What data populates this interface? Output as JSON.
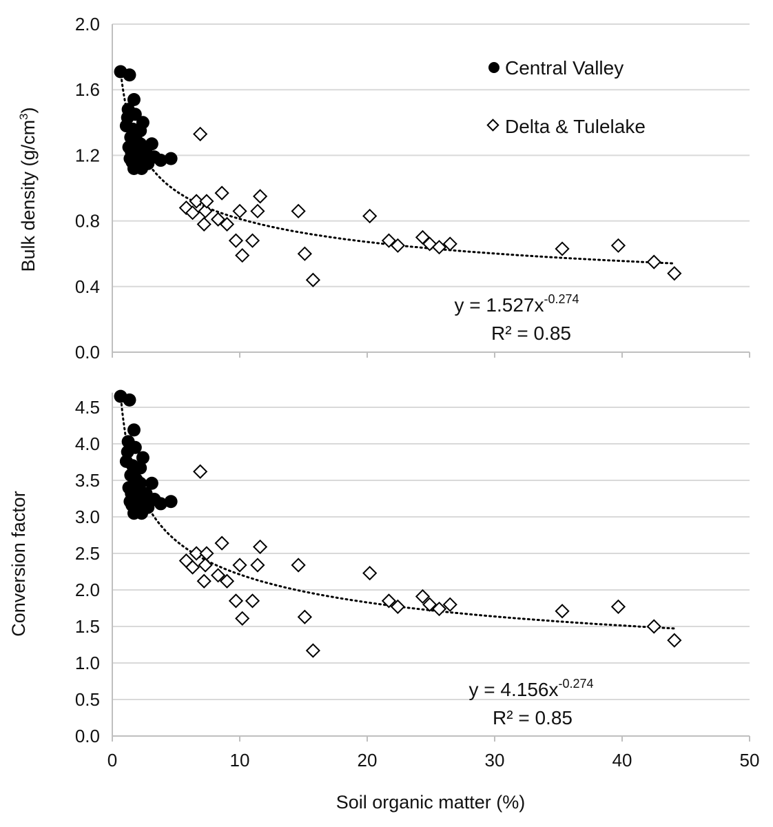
{
  "chart_data": [
    {
      "type": "scatter",
      "ylabel": "Bulk density (g/cm3)",
      "ylabel_main": "Bulk density (g/cm",
      "ylabel_sup": "3",
      "ylabel_end": ")",
      "xlim": [
        0,
        50
      ],
      "ylim": [
        0,
        2.0
      ],
      "yticks": [
        "0.0",
        "0.4",
        "0.8",
        "1.2",
        "1.6",
        "2.0"
      ],
      "ytick_values": [
        0,
        0.4,
        0.8,
        1.2,
        1.6,
        2.0
      ],
      "xticks_values": [
        0,
        10,
        20,
        30,
        40,
        50
      ],
      "grid": true,
      "legend": {
        "placement": "top-right",
        "entries": [
          "Central Valley",
          "Delta & Tulelake"
        ]
      },
      "trendline": {
        "type": "power",
        "a": 1.527,
        "b": -0.274,
        "style": "dotted",
        "x_range": [
          0.65,
          44.1
        ]
      },
      "equation": {
        "main": "y = 1.527x",
        "exponent": "-0.274",
        "r2": "R² = 0.85"
      },
      "series": [
        {
          "name": "Central Valley",
          "marker": "filled-circle",
          "color": "#000000",
          "x": [
            0.65,
            1.35,
            1.7,
            1.25,
            1.2,
            1.1,
            2.4,
            2.2,
            2.0,
            3.1,
            1.4,
            2.0,
            2.3,
            4.6,
            3.8,
            1.7,
            1.45,
            1.75,
            2.65,
            1.6,
            1.9,
            2.1,
            2.5,
            1.3,
            1.5,
            2.8,
            3.3,
            1.8,
            2.2,
            1.55
          ],
          "y": [
            1.71,
            1.69,
            1.54,
            1.48,
            1.43,
            1.38,
            1.4,
            1.35,
            1.26,
            1.27,
            1.18,
            1.14,
            1.12,
            1.18,
            1.17,
            1.12,
            1.31,
            1.24,
            1.22,
            1.36,
            1.29,
            1.2,
            1.18,
            1.25,
            1.22,
            1.15,
            1.19,
            1.45,
            1.27,
            1.16
          ]
        },
        {
          "name": "Delta & Tulelake",
          "marker": "open-diamond",
          "color": "#000000",
          "x": [
            6.9,
            5.8,
            6.3,
            6.6,
            7.3,
            7.2,
            7.4,
            8.3,
            8.6,
            9.0,
            9.7,
            10.0,
            10.2,
            11.0,
            11.4,
            11.6,
            14.6,
            15.1,
            15.75,
            20.2,
            21.7,
            22.4,
            24.35,
            24.9,
            25.65,
            26.5,
            35.3,
            39.7,
            42.5,
            44.1
          ],
          "y": [
            1.33,
            0.88,
            0.85,
            0.92,
            0.86,
            0.78,
            0.92,
            0.81,
            0.97,
            0.78,
            0.68,
            0.86,
            0.59,
            0.68,
            0.86,
            0.95,
            0.86,
            0.6,
            0.44,
            0.83,
            0.68,
            0.65,
            0.7,
            0.66,
            0.64,
            0.66,
            0.63,
            0.65,
            0.55,
            0.48
          ]
        }
      ]
    },
    {
      "type": "scatter",
      "xlabel": "Soil organic matter (%)",
      "ylabel": "Conversion factor",
      "xlim": [
        0,
        50
      ],
      "ylim": [
        0,
        4.7
      ],
      "xticks": [
        "0",
        "10",
        "20",
        "30",
        "40",
        "50"
      ],
      "xtick_values": [
        0,
        10,
        20,
        30,
        40,
        50
      ],
      "yticks": [
        "0.0",
        "0.5",
        "1.0",
        "1.5",
        "2.0",
        "2.5",
        "3.0",
        "3.5",
        "4.0",
        "4.5"
      ],
      "ytick_values": [
        0,
        0.5,
        1.0,
        1.5,
        2.0,
        2.5,
        3.0,
        3.5,
        4.0,
        4.5
      ],
      "grid": true,
      "trendline": {
        "type": "power",
        "a": 4.156,
        "b": -0.274,
        "style": "dotted",
        "x_range": [
          0.65,
          44.1
        ]
      },
      "equation": {
        "main": "y = 4.156x",
        "exponent": "-0.274",
        "r2": "R² = 0.85"
      },
      "series": [
        {
          "name": "Central Valley",
          "marker": "filled-circle",
          "color": "#000000",
          "x": [
            0.65,
            1.35,
            1.7,
            1.25,
            1.2,
            1.1,
            2.4,
            2.2,
            2.0,
            3.1,
            1.4,
            2.0,
            2.3,
            4.6,
            3.8,
            1.7,
            1.45,
            1.75,
            2.65,
            1.6,
            1.9,
            2.1,
            2.5,
            1.3,
            1.5,
            2.8,
            3.3,
            1.8,
            2.2,
            1.55
          ],
          "y": [
            4.65,
            4.6,
            4.19,
            4.03,
            3.89,
            3.76,
            3.81,
            3.67,
            3.43,
            3.46,
            3.21,
            3.1,
            3.05,
            3.21,
            3.18,
            3.05,
            3.57,
            3.38,
            3.32,
            3.7,
            3.51,
            3.27,
            3.21,
            3.4,
            3.32,
            3.13,
            3.24,
            3.95,
            3.46,
            3.16
          ]
        },
        {
          "name": "Delta & Tulelake",
          "marker": "open-diamond",
          "color": "#000000",
          "x": [
            6.9,
            5.8,
            6.3,
            6.6,
            7.3,
            7.2,
            7.4,
            8.3,
            8.6,
            9.0,
            9.7,
            10.0,
            10.2,
            11.0,
            11.4,
            11.6,
            14.6,
            15.1,
            15.75,
            20.2,
            21.7,
            22.4,
            24.35,
            24.9,
            25.65,
            26.5,
            35.3,
            39.7,
            42.5,
            44.1
          ],
          "y": [
            3.62,
            2.4,
            2.31,
            2.5,
            2.34,
            2.12,
            2.5,
            2.2,
            2.64,
            2.12,
            1.85,
            2.34,
            1.61,
            1.85,
            2.34,
            2.59,
            2.34,
            1.63,
            1.17,
            2.23,
            1.85,
            1.77,
            1.91,
            1.8,
            1.74,
            1.8,
            1.71,
            1.77,
            1.5,
            1.31
          ]
        }
      ]
    }
  ]
}
